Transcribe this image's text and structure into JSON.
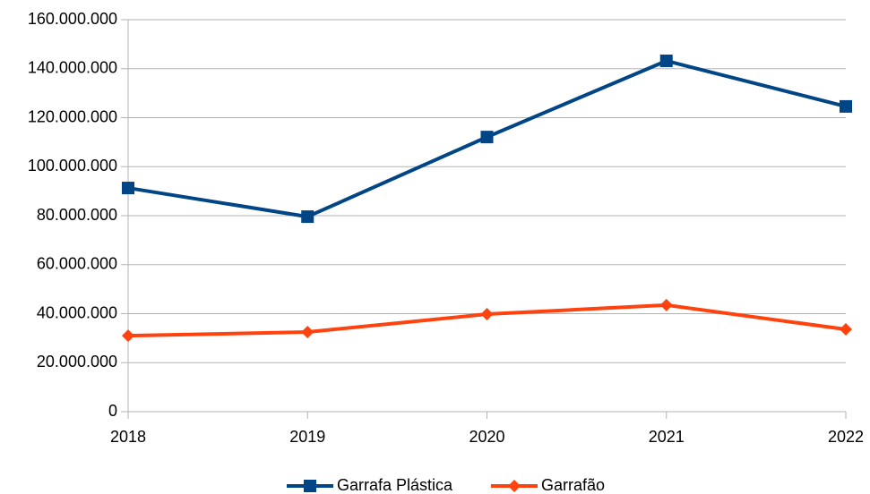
{
  "chart_data": {
    "type": "line",
    "categories": [
      "2018",
      "2019",
      "2020",
      "2021",
      "2022"
    ],
    "series": [
      {
        "name": "Garrafa Plástica",
        "color": "#004586",
        "marker": "square",
        "values": [
          91300000,
          79600000,
          112100000,
          143200000,
          124600000
        ]
      },
      {
        "name": "Garrafão",
        "color": "#ff420e",
        "marker": "diamond",
        "values": [
          31000000,
          32500000,
          39800000,
          43500000,
          33600000
        ]
      }
    ],
    "ylim": [
      0,
      160000000
    ],
    "yticks": [
      0,
      {
        "value": 20000000,
        "label": "20.000.000"
      },
      {
        "value": 40000000,
        "label": "40.000.000"
      },
      {
        "value": 60000000,
        "label": "60.000.000"
      },
      {
        "value": 80000000,
        "label": "80.000.000"
      },
      {
        "value": 100000000,
        "label": "100.000.000"
      },
      {
        "value": 120000000,
        "label": "120.000.000"
      },
      {
        "value": 140000000,
        "label": "140.000.000"
      },
      {
        "value": 160000000,
        "label": "160.000.000"
      }
    ],
    "grid": true,
    "legend": "bottom"
  }
}
